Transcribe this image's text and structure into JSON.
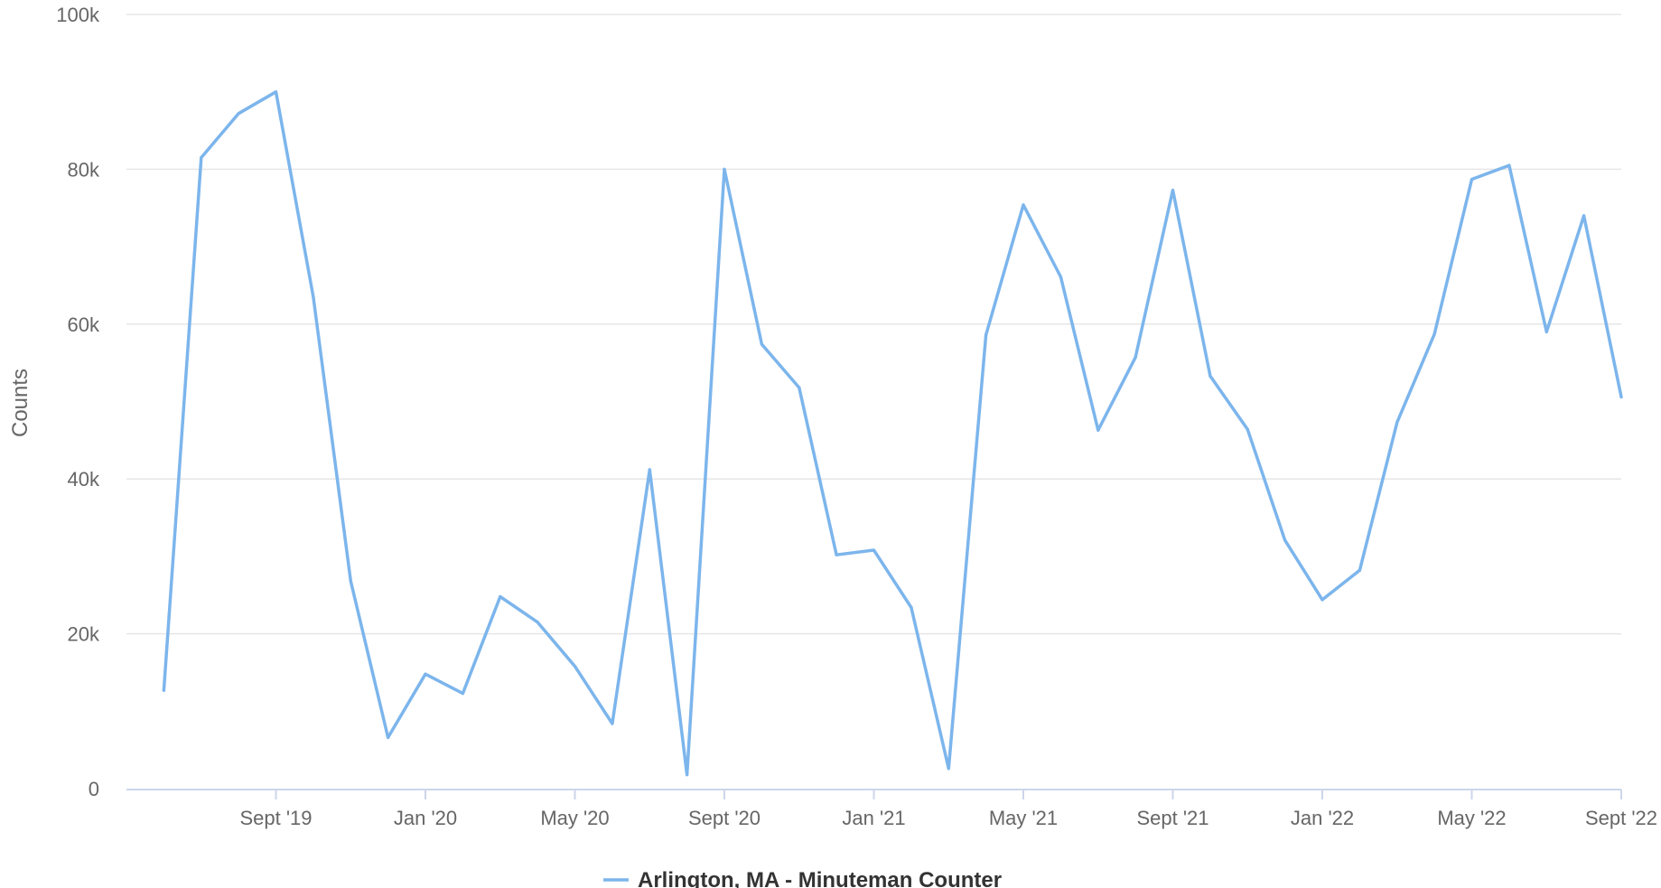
{
  "chart_data": {
    "type": "line",
    "ylabel": "Counts",
    "ylim": [
      0,
      100000
    ],
    "y_ticks": [
      0,
      20000,
      40000,
      60000,
      80000,
      100000
    ],
    "y_tick_labels": [
      "0",
      "20k",
      "40k",
      "60k",
      "80k",
      "100k"
    ],
    "x_tick_labels": [
      "Sept '19",
      "Jan '20",
      "May '20",
      "Sept '20",
      "Jan '21",
      "May '21",
      "Sept '21",
      "Jan '22",
      "May '22",
      "Sept '22"
    ],
    "x_tick_positions": [
      "2019-09",
      "2020-01",
      "2020-05",
      "2020-09",
      "2021-01",
      "2021-05",
      "2021-09",
      "2022-01",
      "2022-05",
      "2022-09"
    ],
    "grid": true,
    "legend": "bottom",
    "series": [
      {
        "name": "Arlington, MA - Minuteman Counter",
        "color": "#7cb5ec",
        "x": [
          "2019-06",
          "2019-07",
          "2019-08",
          "2019-09",
          "2019-10",
          "2019-11",
          "2019-12",
          "2020-01",
          "2020-02",
          "2020-03",
          "2020-04",
          "2020-05",
          "2020-06",
          "2020-07",
          "2020-08",
          "2020-09",
          "2020-10",
          "2020-11",
          "2020-12",
          "2021-01",
          "2021-02",
          "2021-03",
          "2021-04",
          "2021-05",
          "2021-06",
          "2021-07",
          "2021-08",
          "2021-09",
          "2021-10",
          "2021-11",
          "2021-12",
          "2022-01",
          "2022-02",
          "2022-03",
          "2022-04",
          "2022-05",
          "2022-06",
          "2022-07",
          "2022-08",
          "2022-09"
        ],
        "values": [
          12700,
          81500,
          87200,
          90000,
          63500,
          26800,
          6600,
          14800,
          12300,
          24800,
          21500,
          15800,
          8400,
          41200,
          1800,
          80000,
          57400,
          51800,
          30200,
          30800,
          23400,
          2600,
          58600,
          75400,
          66100,
          46300,
          55700,
          77300,
          53300,
          46400,
          32100,
          24400,
          28200,
          47300,
          58700,
          78700,
          80500,
          59000,
          74000,
          50600
        ]
      }
    ]
  }
}
